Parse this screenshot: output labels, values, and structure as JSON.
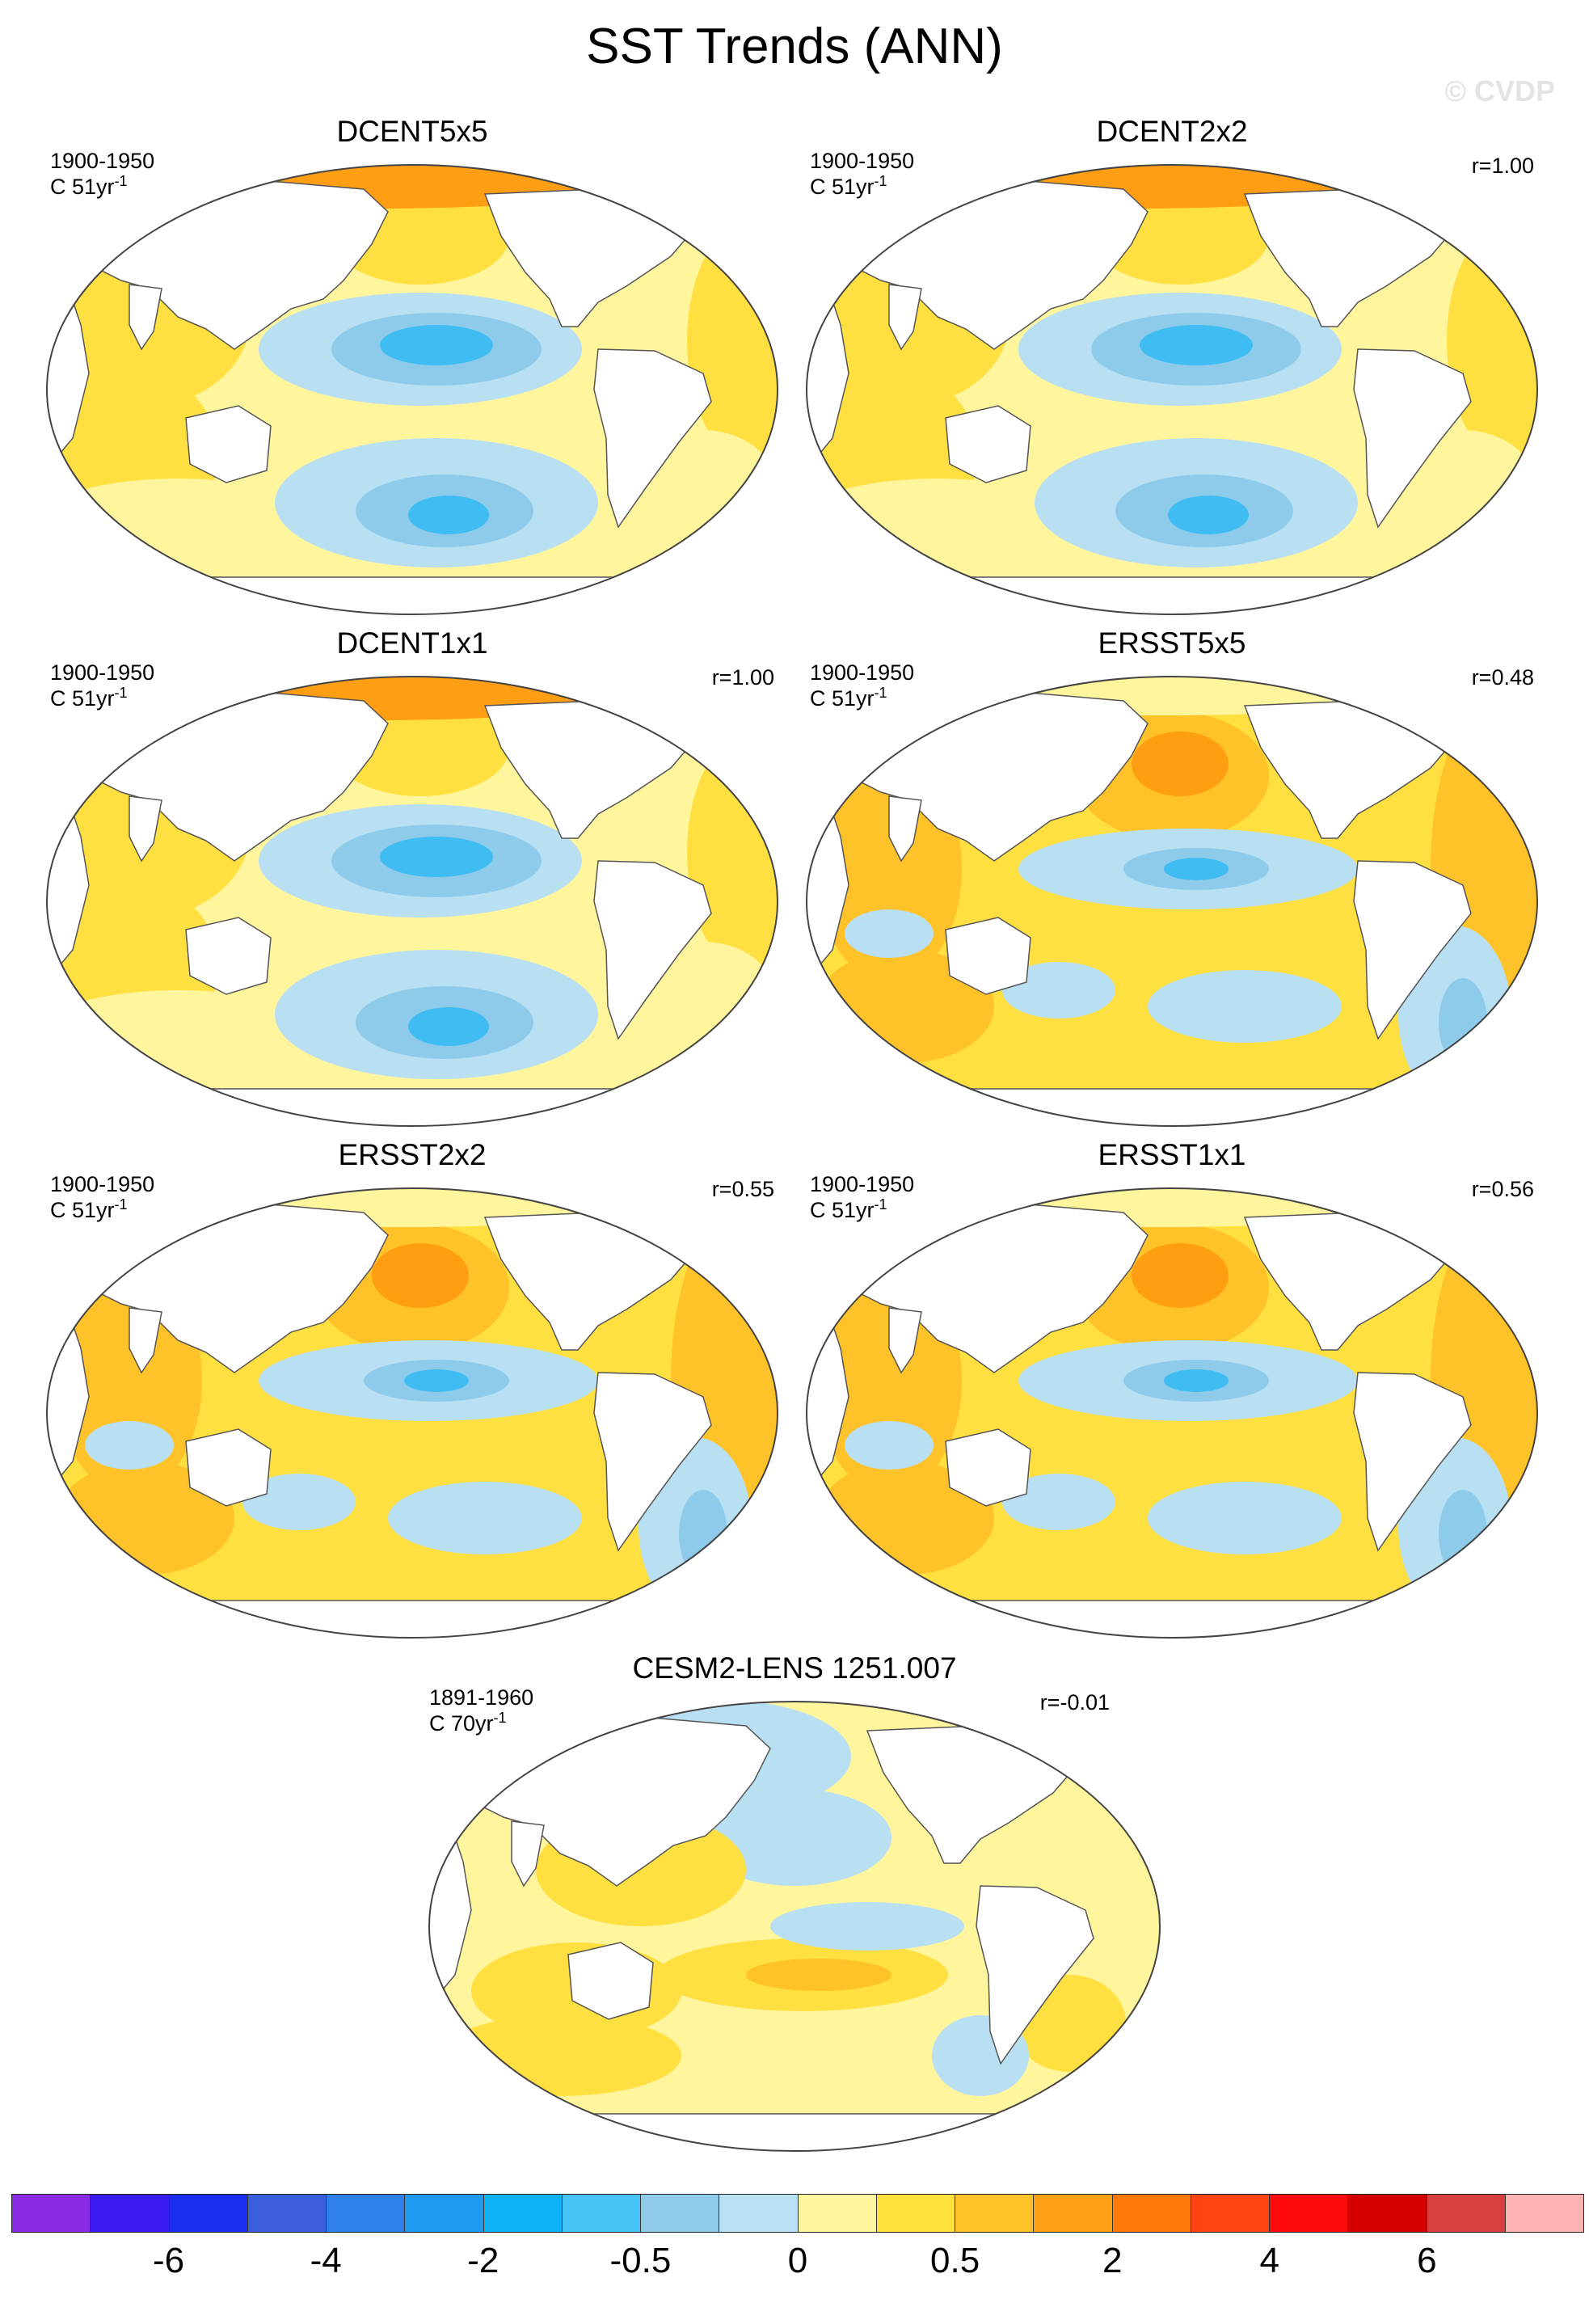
{
  "title": "SST Trends (ANN)",
  "watermark": "© CVDP",
  "colors": {
    "land": "#ffffff",
    "coast": "#555555",
    "cool1": "#b9e0f2",
    "cool2": "#8ecbeb",
    "cool3": "#3fbcf2",
    "cool4": "#1aa0f5",
    "warm1": "#fff59c",
    "warm2": "#ffe040",
    "warm3": "#ffc228",
    "warm4": "#ff9e12"
  },
  "panels": [
    {
      "id": "dcent5x5",
      "title": "DCENT5x5",
      "period": "1900-1950",
      "units_base": "C 51yr",
      "units_exp": "-1",
      "corr": "",
      "pattern": "dcent"
    },
    {
      "id": "dcent2x2",
      "title": "DCENT2x2",
      "period": "1900-1950",
      "units_base": "C 51yr",
      "units_exp": "-1",
      "corr": "r=1.00",
      "pattern": "dcent"
    },
    {
      "id": "dcent1x1",
      "title": "DCENT1x1",
      "period": "1900-1950",
      "units_base": "C 51yr",
      "units_exp": "-1",
      "corr": "r=1.00",
      "pattern": "dcent"
    },
    {
      "id": "ersst5x5",
      "title": "ERSST5x5",
      "period": "1900-1950",
      "units_base": "C 51yr",
      "units_exp": "-1",
      "corr": "r=0.48",
      "pattern": "ersst"
    },
    {
      "id": "ersst2x2",
      "title": "ERSST2x2",
      "period": "1900-1950",
      "units_base": "C 51yr",
      "units_exp": "-1",
      "corr": "r=0.55",
      "pattern": "ersst"
    },
    {
      "id": "ersst1x1",
      "title": "ERSST1x1",
      "period": "1900-1950",
      "units_base": "C 51yr",
      "units_exp": "-1",
      "corr": "r=0.56",
      "pattern": "ersst"
    },
    {
      "id": "cesm2",
      "title": "CESM2-LENS 1251.007",
      "period": "1891-1960",
      "units_base": "C 70yr",
      "units_exp": "-1",
      "corr": "r=-0.01",
      "pattern": "cesm"
    }
  ],
  "colorbar": {
    "colors": [
      "#8a2be6",
      "#3a1bf2",
      "#1a2ef2",
      "#3b5fdc",
      "#2f7fe8",
      "#1e9af0",
      "#0fb3f5",
      "#45c4f5",
      "#90cbeb",
      "#b9e2f5",
      "#fff7a0",
      "#ffe03c",
      "#ffc228",
      "#ffa014",
      "#ff7a0a",
      "#ff4414",
      "#ff0a0a",
      "#d40000",
      "#d84040",
      "#ffb4b4"
    ],
    "labels": [
      "-6",
      "-4",
      "-2",
      "-0.5",
      "0",
      "0.5",
      "2",
      "4",
      "6"
    ]
  }
}
